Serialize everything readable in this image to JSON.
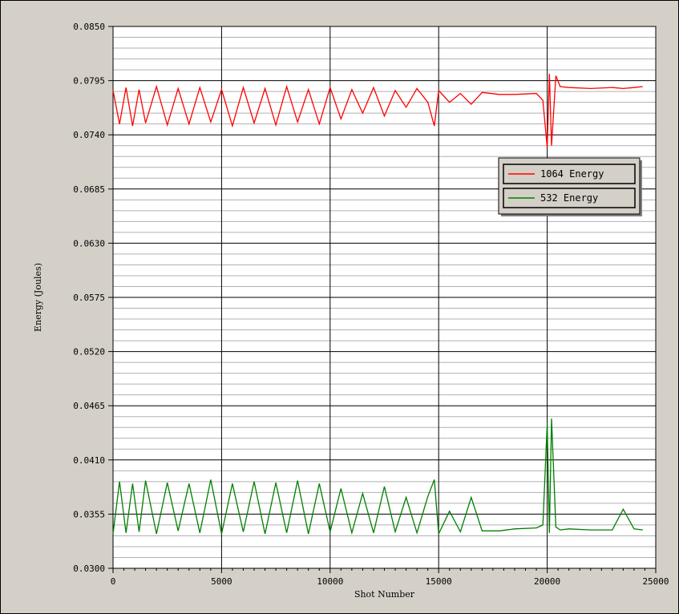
{
  "chart_data": {
    "type": "line",
    "title": "",
    "xlabel": "Shot Number",
    "ylabel": "Energy (Joules)",
    "xlim": [
      0,
      25000
    ],
    "ylim": [
      0.03,
      0.085
    ],
    "x_ticks": [
      0,
      5000,
      10000,
      15000,
      20000,
      25000
    ],
    "x_tick_labels": [
      "0",
      "5000",
      "10000",
      "15000",
      "20000",
      "25000"
    ],
    "y_ticks": [
      0.03,
      0.0355,
      0.041,
      0.0465,
      0.052,
      0.0575,
      0.063,
      0.0685,
      0.074,
      0.0795,
      0.085
    ],
    "y_tick_labels": [
      "0.0300",
      "0.0355",
      "0.0410",
      "0.0465",
      "0.0520",
      "0.0575",
      "0.0630",
      "0.0685",
      "0.0740",
      "0.0795",
      "0.0850"
    ],
    "grid": true,
    "legend_position": "right",
    "series": [
      {
        "name": "1064 Energy",
        "color": "#ff0000",
        "x": [
          0,
          300,
          600,
          900,
          1200,
          1500,
          2000,
          2500,
          3000,
          3500,
          4000,
          4500,
          5000,
          5500,
          6000,
          6500,
          7000,
          7500,
          8000,
          8500,
          9000,
          9500,
          10000,
          10500,
          11000,
          11500,
          12000,
          12500,
          13000,
          13500,
          14000,
          14500,
          14800,
          15000,
          15500,
          16000,
          16500,
          17000,
          17800,
          18500,
          19500,
          19800,
          20000,
          20100,
          20200,
          20400,
          20600,
          21000,
          22000,
          23000,
          23500,
          24000,
          24400
        ],
        "y": [
          0.0785,
          0.0751,
          0.0788,
          0.0749,
          0.0786,
          0.0752,
          0.0789,
          0.075,
          0.0787,
          0.0751,
          0.0788,
          0.0753,
          0.0786,
          0.0749,
          0.0788,
          0.0752,
          0.0787,
          0.075,
          0.0789,
          0.0753,
          0.0786,
          0.0751,
          0.0788,
          0.0756,
          0.0786,
          0.0762,
          0.0788,
          0.0759,
          0.0785,
          0.0768,
          0.0787,
          0.0773,
          0.0749,
          0.0785,
          0.0773,
          0.0782,
          0.0771,
          0.0783,
          0.0781,
          0.0781,
          0.0782,
          0.0775,
          0.0727,
          0.0802,
          0.0729,
          0.08,
          0.0789,
          0.0788,
          0.0787,
          0.0788,
          0.0787,
          0.0788,
          0.0789
        ]
      },
      {
        "name": "532 Energy",
        "color": "#007f00",
        "x": [
          0,
          300,
          600,
          900,
          1200,
          1500,
          2000,
          2500,
          3000,
          3500,
          4000,
          4500,
          5000,
          5500,
          6000,
          6500,
          7000,
          7500,
          8000,
          8500,
          9000,
          9500,
          10000,
          10500,
          11000,
          11500,
          12000,
          12500,
          13000,
          13500,
          14000,
          14500,
          14800,
          15000,
          15500,
          16000,
          16500,
          17000,
          17800,
          18500,
          19500,
          19800,
          20000,
          20100,
          20200,
          20400,
          20600,
          21000,
          22000,
          23000,
          23500,
          24000,
          24400
        ],
        "y": [
          0.0335,
          0.0388,
          0.0336,
          0.0386,
          0.0337,
          0.0389,
          0.0335,
          0.0387,
          0.0338,
          0.0386,
          0.0336,
          0.039,
          0.0335,
          0.0386,
          0.0337,
          0.0388,
          0.0335,
          0.0387,
          0.0336,
          0.0389,
          0.0335,
          0.0386,
          0.0337,
          0.0381,
          0.0336,
          0.0376,
          0.0336,
          0.0383,
          0.0337,
          0.0372,
          0.0336,
          0.0373,
          0.039,
          0.0335,
          0.0358,
          0.0337,
          0.0372,
          0.0338,
          0.0338,
          0.034,
          0.0341,
          0.0344,
          0.0447,
          0.0336,
          0.0452,
          0.0342,
          0.0339,
          0.034,
          0.0339,
          0.0339,
          0.036,
          0.034,
          0.0339
        ]
      }
    ]
  }
}
